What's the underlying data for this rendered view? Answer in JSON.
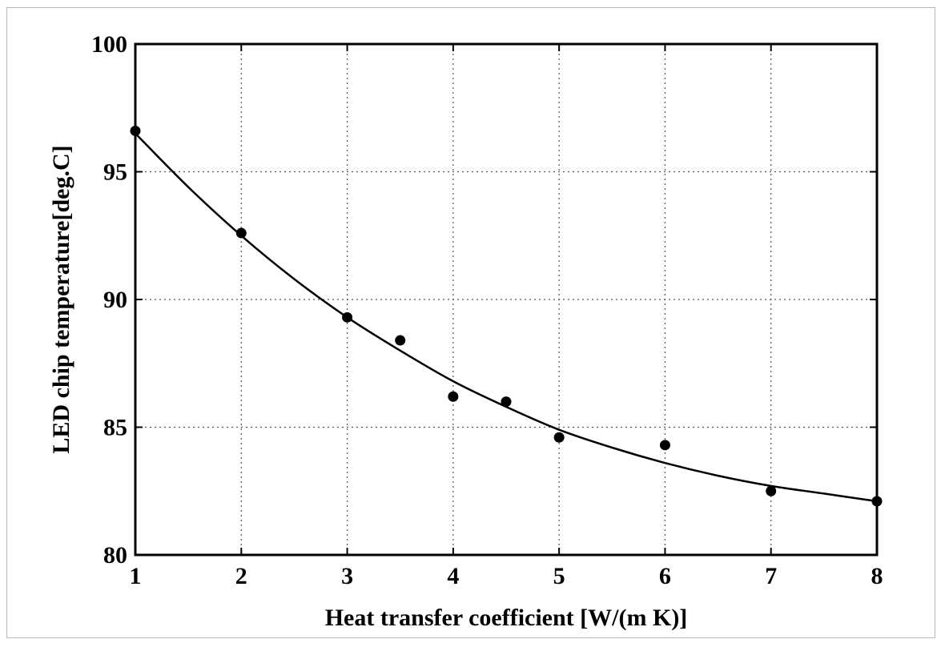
{
  "chart_data": {
    "type": "scatter",
    "xlabel": "Heat transfer coefficient [W/(m K)]",
    "ylabel": "LED chip temperature[deg.C]",
    "xlim": [
      1,
      8
    ],
    "ylim": [
      80,
      100
    ],
    "xticks": [
      1,
      2,
      3,
      4,
      5,
      6,
      7,
      8
    ],
    "yticks": [
      80,
      85,
      90,
      95,
      100
    ],
    "grid": true,
    "series": [
      {
        "type": "scatter",
        "x": [
          1,
          2,
          3,
          3.5,
          4,
          4.5,
          5,
          6,
          7,
          8
        ],
        "y": [
          96.6,
          92.6,
          89.3,
          88.4,
          86.2,
          86.0,
          84.6,
          84.3,
          82.5,
          82.1
        ]
      },
      {
        "type": "line",
        "x": [
          1,
          1.5,
          2,
          2.5,
          3,
          3.5,
          4,
          4.5,
          5,
          5.5,
          6,
          6.5,
          7,
          7.5,
          8
        ],
        "y": [
          96.5,
          94.4,
          92.5,
          90.8,
          89.3,
          88.0,
          86.8,
          85.8,
          84.9,
          84.2,
          83.6,
          83.1,
          82.7,
          82.4,
          82.1
        ]
      }
    ]
  }
}
